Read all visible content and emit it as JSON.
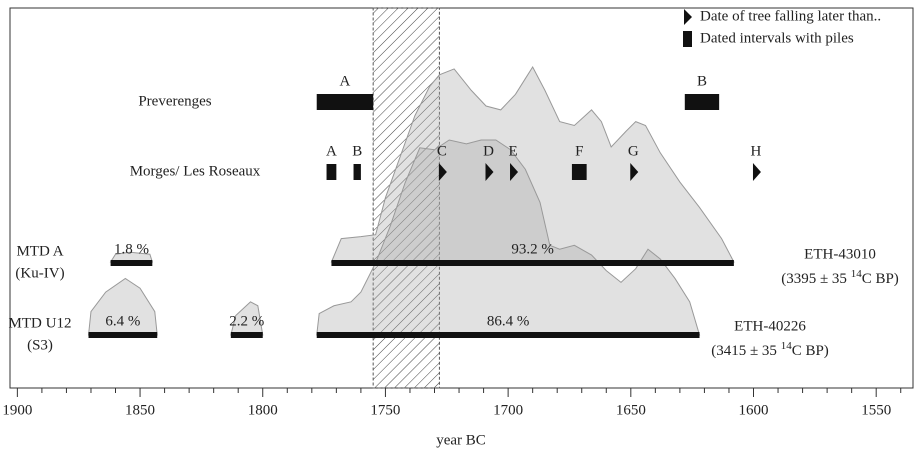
{
  "chart_data": {
    "type": "timeline",
    "xlabel": "year BC",
    "xlim": [
      1903,
      1535
    ],
    "xticks": [
      1900,
      1850,
      1800,
      1750,
      1700,
      1650,
      1600,
      1550
    ],
    "xminorticks": [
      1890,
      1880,
      1870,
      1860,
      1840,
      1830,
      1820,
      1810,
      1790,
      1780,
      1770,
      1760,
      1740,
      1730,
      1720,
      1710,
      1690,
      1680,
      1670,
      1660,
      1640,
      1630,
      1620,
      1610,
      1590,
      1580,
      1570,
      1560,
      1540
    ],
    "hatched_interval": {
      "start": 1755,
      "end": 1728
    },
    "legend": [
      {
        "label": "Date of tree falling later than..",
        "marker": "triangle"
      },
      {
        "label": "Dated intervals with piles",
        "marker": "interval"
      }
    ],
    "sites": [
      {
        "name": "Preverenges",
        "events": [
          {
            "label": "A",
            "marker": "interval",
            "start": 1778,
            "end": 1755
          },
          {
            "label": "B",
            "marker": "interval",
            "start": 1628,
            "end": 1614
          }
        ]
      },
      {
        "name": "Morges/ Les Roseaux",
        "events": [
          {
            "label": "A",
            "marker": "interval",
            "start": 1774,
            "end": 1770
          },
          {
            "label": "B",
            "marker": "interval",
            "start": 1763,
            "end": 1760
          },
          {
            "label": "C",
            "marker": "triangle",
            "start": 1727
          },
          {
            "label": "D",
            "marker": "triangle",
            "start": 1708
          },
          {
            "label": "E",
            "marker": "triangle",
            "start": 1698
          },
          {
            "label": "F",
            "marker": "interval",
            "start": 1674,
            "end": 1668
          },
          {
            "label": "G",
            "marker": "triangle",
            "start": 1649
          },
          {
            "label": "H",
            "marker": "triangle",
            "start": 1599
          }
        ]
      }
    ],
    "samples": [
      {
        "name": "MTD A",
        "subname": "(Ku-IV)",
        "lab_id": "ETH-43010",
        "age_prefix": "(3395 ± 35 ",
        "age_sup": "14",
        "age_suffix": "C BP)",
        "intervals": [
          {
            "start": 1862,
            "end": 1845,
            "probability": 1.8,
            "probability_label": "1.8 %"
          },
          {
            "start": 1772,
            "end": 1608,
            "probability": 93.2,
            "probability_label": "93.2 %"
          }
        ],
        "density": {
          "x": [
            1862,
            1860,
            1854,
            1846,
            1845,
            null,
            1772,
            1768,
            1760,
            1754,
            1750,
            1744,
            1738,
            1732,
            1728,
            1722,
            1715,
            1709,
            1703,
            1697,
            1693,
            1690,
            1685,
            1679,
            1673,
            1666,
            1662,
            1658,
            1652,
            1648,
            1644,
            1638,
            1630,
            1622,
            1613,
            1608
          ],
          "values": [
            0,
            4,
            5,
            4,
            0,
            null,
            0,
            12,
            13,
            14,
            33,
            54,
            75,
            90,
            96,
            99,
            88,
            80,
            78,
            86,
            94,
            100,
            88,
            72,
            70,
            78,
            72,
            59,
            67,
            72,
            70,
            56,
            41,
            28,
            12,
            0
          ]
        }
      },
      {
        "name": "MTD U12",
        "subname": "(S3)",
        "lab_id": "ETH-40226",
        "age_prefix": "(3415 ± 35 ",
        "age_sup": "14",
        "age_suffix": "C BP)",
        "intervals": [
          {
            "start": 1871,
            "end": 1843,
            "probability": 6.4,
            "probability_label": "6.4 %"
          },
          {
            "start": 1813,
            "end": 1800,
            "probability": 2.2,
            "probability_label": "2.2 %"
          },
          {
            "start": 1778,
            "end": 1622,
            "probability": 86.4,
            "probability_label": "86.4 %"
          }
        ],
        "density": {
          "x": [
            1871,
            1870,
            1864,
            1856,
            1850,
            1844,
            1843,
            null,
            1813,
            1811,
            1805,
            1802,
            1800,
            null,
            1778,
            1777,
            1771,
            1764,
            1760,
            1754,
            1748,
            1742,
            1736,
            1730,
            1724,
            1717,
            1711,
            1705,
            1699,
            1693,
            1687,
            1683,
            1679,
            1673,
            1666,
            1660,
            1654,
            1648,
            1643,
            1638,
            1632,
            1626,
            1622
          ],
          "values": [
            0,
            12,
            22,
            29,
            24,
            12,
            0,
            null,
            0,
            10,
            17,
            15,
            0,
            null,
            0,
            11,
            15,
            17,
            22,
            37,
            56,
            78,
            96,
            95,
            100,
            98,
            100,
            100,
            95,
            85,
            68,
            46,
            44,
            46,
            41,
            33,
            27,
            34,
            44,
            39,
            29,
            17,
            0
          ]
        }
      }
    ]
  }
}
